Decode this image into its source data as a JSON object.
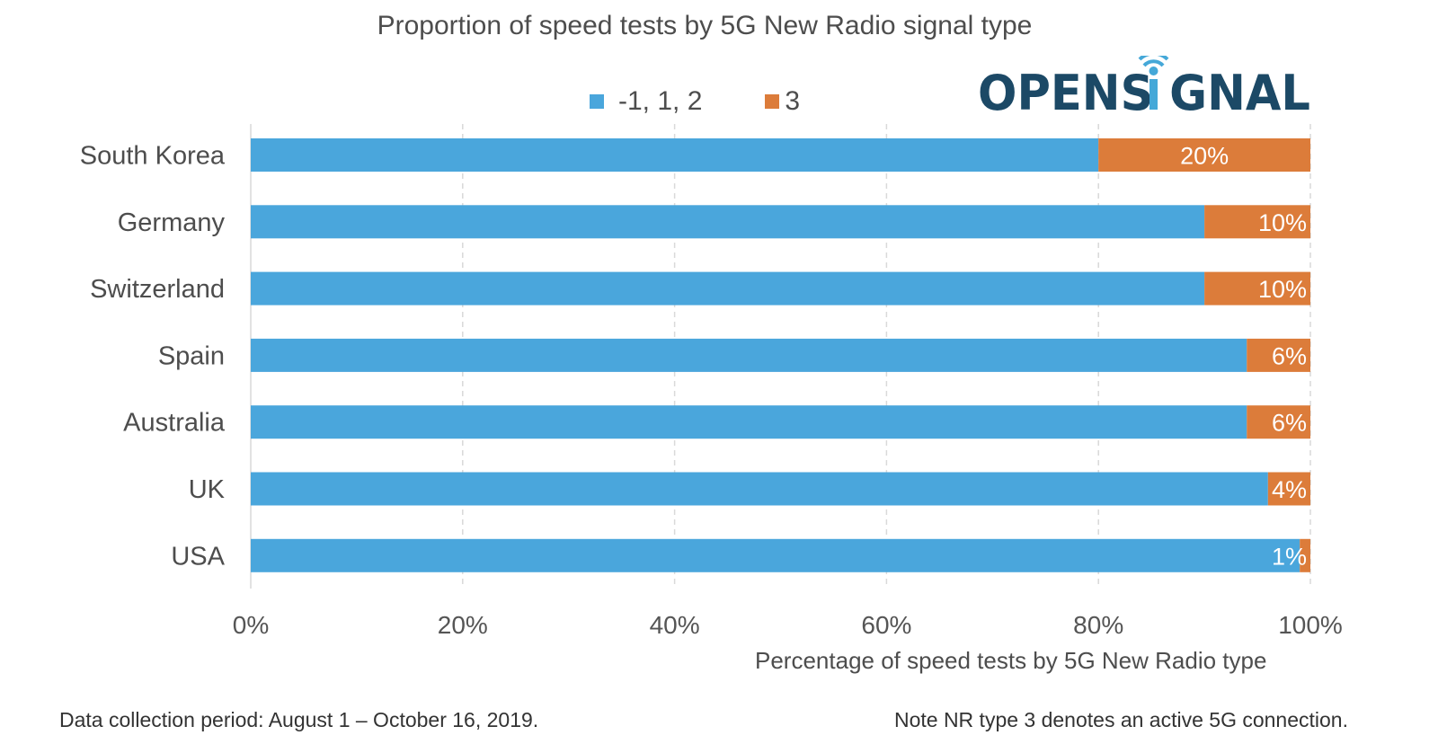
{
  "logo": {
    "text": "OPENSIGNAL"
  },
  "colors": {
    "series1": "#4aa6dc",
    "series2": "#dc7c3a",
    "grid": "#d9d9d9",
    "logo": "#1c4966",
    "logo_accent": "#45a8d8"
  },
  "footer": {
    "left": "Data collection period: August 1 – October 16, 2019.",
    "right": "Note NR type 3 denotes an active 5G connection."
  },
  "chart_data": {
    "type": "bar",
    "orientation": "horizontal",
    "stacked": true,
    "title": "Proportion of speed tests by 5G New Radio signal type",
    "xlabel": "Percentage of speed tests by 5G New Radio type",
    "ylabel": "",
    "xlim": [
      0,
      100
    ],
    "xticks": [
      "0%",
      "20%",
      "40%",
      "60%",
      "80%",
      "100%"
    ],
    "xtick_values": [
      0,
      20,
      40,
      60,
      80,
      100
    ],
    "grid": "vertical dashed",
    "legend": "top-center",
    "categories": [
      "South Korea",
      "Germany",
      "Switzerland",
      "Spain",
      "Australia",
      "UK",
      "USA"
    ],
    "series": [
      {
        "name": "-1, 1, 2",
        "values": [
          80,
          90,
          90,
          94,
          94,
          96,
          99
        ]
      },
      {
        "name": "3",
        "values": [
          20,
          10,
          10,
          6,
          6,
          4,
          1
        ],
        "labels": [
          "20%",
          "10%",
          "10%",
          "6%",
          "6%",
          "4%",
          "1%"
        ]
      }
    ]
  }
}
